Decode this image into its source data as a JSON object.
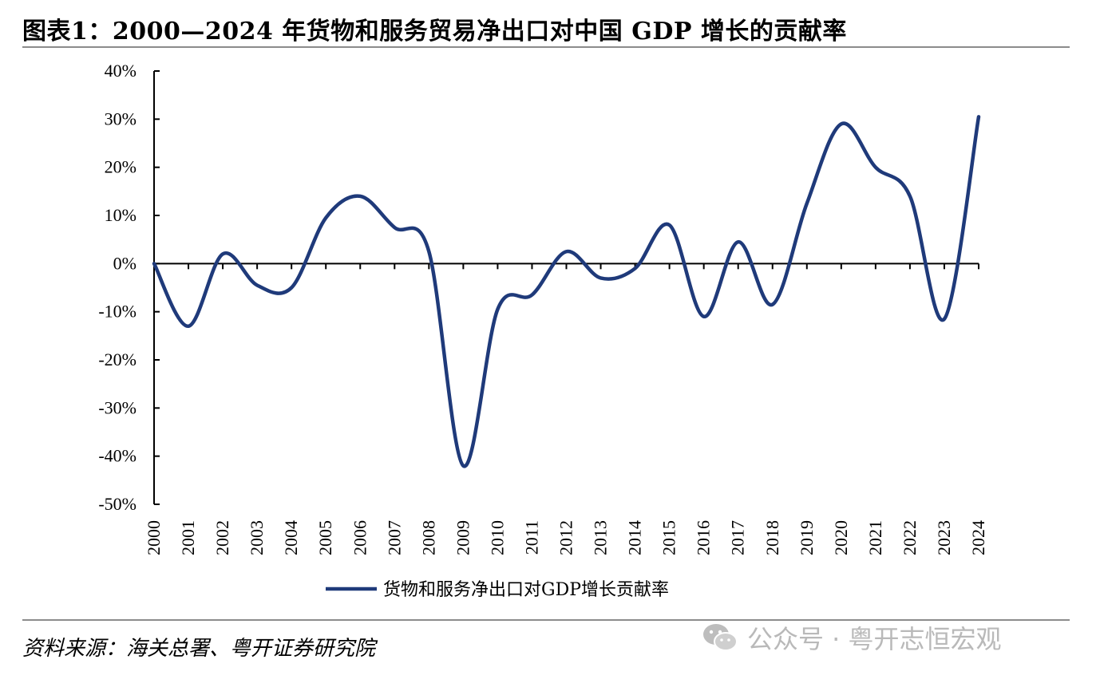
{
  "header": {
    "title": "图表1：2000—2024 年货物和服务贸易净出口对中国 GDP 增长的贡献率"
  },
  "footer": {
    "source": "资料来源：海关总署、粤开证券研究院",
    "watermark": "公众号 · 粤开志恒宏观"
  },
  "icons": {
    "watermark_icon": "wechat-icon"
  },
  "chart_data": {
    "type": "line",
    "title": "",
    "xlabel": "",
    "ylabel": "",
    "ylim": [
      -50,
      40
    ],
    "yticks": [
      40,
      30,
      20,
      10,
      0,
      -10,
      -20,
      -30,
      -40,
      -50
    ],
    "ytick_labels": [
      "40%",
      "30%",
      "20%",
      "10%",
      "0%",
      "-10%",
      "-20%",
      "-30%",
      "-40%",
      "-50%"
    ],
    "x": [
      "2000",
      "2001",
      "2002",
      "2003",
      "2004",
      "2005",
      "2006",
      "2007",
      "2008",
      "2009",
      "2010",
      "2011",
      "2012",
      "2013",
      "2014",
      "2015",
      "2016",
      "2017",
      "2018",
      "2019",
      "2020",
      "2021",
      "2022",
      "2023",
      "2024"
    ],
    "grid": false,
    "legend_position": "bottom-center",
    "series": [
      {
        "name": "货物和服务净出口对GDP增长贡献率",
        "color": "#1f3a7a",
        "values": [
          0.0,
          -13.0,
          2.0,
          -4.5,
          -5.0,
          9.5,
          14.0,
          7.5,
          2.5,
          -42.0,
          -9.5,
          -6.5,
          2.5,
          -3.0,
          -1.0,
          8.0,
          -11.0,
          4.5,
          -8.5,
          12.5,
          29.0,
          20.0,
          14.0,
          -11.5,
          30.5
        ]
      }
    ]
  }
}
